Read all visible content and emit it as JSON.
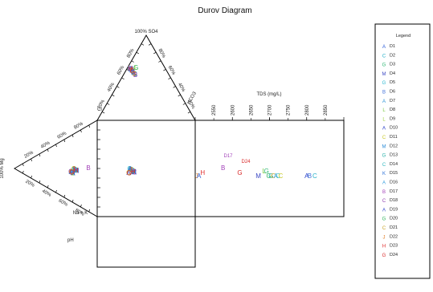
{
  "chart_data": {
    "type": "scatter",
    "title": "Durov Diagram",
    "anion_apex_label": "100% SO4",
    "cation_apex_label": "100% Mg",
    "anion_left_axis_label": "Cl",
    "anion_right_axis_label": "HCO3",
    "cation_bottom_label": "Na + K",
    "ph_label": "pH",
    "tds_label": "TDS (mg/L)",
    "anion_tick_labels": [
      "20%",
      "40%",
      "60%",
      "80%"
    ],
    "anion_right_tick_labels": [
      "20%",
      "40%",
      "60%",
      "80%"
    ],
    "cation_tick_labels": [
      "20%",
      "40%",
      "60%",
      "80%"
    ],
    "cation_bottom_tick_labels": [
      "20%",
      "40%",
      "60%",
      "80%"
    ],
    "tds_ticks": [
      2500,
      2600,
      2700,
      2800,
      2900
    ],
    "tds_tick_labels": [
      "2550",
      "2600",
      "2650",
      "2700",
      "2750",
      "2800",
      "2850"
    ],
    "tds_tick_values": [
      2550,
      2600,
      2650,
      2700,
      2750,
      2800,
      2850
    ],
    "xlim": [
      2500,
      2900
    ],
    "legend": {
      "title": "Legend",
      "position": "right",
      "entries": [
        {
          "name": "D1",
          "symbol": "A",
          "color": "#2a5bd7"
        },
        {
          "name": "D2",
          "symbol": "C",
          "color": "#27b0c9"
        },
        {
          "name": "D3",
          "symbol": "G",
          "color": "#2bb673"
        },
        {
          "name": "D4",
          "symbol": "M",
          "color": "#3b48c4"
        },
        {
          "name": "D5",
          "symbol": "G",
          "color": "#2ab7d1"
        },
        {
          "name": "D6",
          "symbol": "B",
          "color": "#3f6fd9"
        },
        {
          "name": "D7",
          "symbol": "A",
          "color": "#2a93d7"
        },
        {
          "name": "D8",
          "symbol": "L",
          "color": "#7ac943"
        },
        {
          "name": "D9",
          "symbol": "L",
          "color": "#9bcf3c"
        },
        {
          "name": "D10",
          "symbol": "A",
          "color": "#2a40c9"
        },
        {
          "name": "D11",
          "symbol": "C",
          "color": "#c9c927"
        },
        {
          "name": "D12",
          "symbol": "M",
          "color": "#2a8bd7"
        },
        {
          "name": "D13",
          "symbol": "G",
          "color": "#25b0a8"
        },
        {
          "name": "D14",
          "symbol": "C",
          "color": "#2fb8c0"
        },
        {
          "name": "D15",
          "symbol": "K",
          "color": "#2a6fd7"
        },
        {
          "name": "D16",
          "symbol": "A",
          "color": "#3aa0e0"
        },
        {
          "name": "D17",
          "symbol": "B",
          "color": "#a13fb8"
        },
        {
          "name": "D18",
          "symbol": "C",
          "color": "#8f3fb0"
        },
        {
          "name": "D19",
          "symbol": "A",
          "color": "#3a52d0"
        },
        {
          "name": "D20",
          "symbol": "G",
          "color": "#2fb35a"
        },
        {
          "name": "D21",
          "symbol": "C",
          "color": "#c9a227"
        },
        {
          "name": "D22",
          "symbol": "J",
          "color": "#e07a1f"
        },
        {
          "name": "D23",
          "symbol": "H",
          "color": "#e02f2f"
        },
        {
          "name": "D24",
          "symbol": "G",
          "color": "#d92a2a"
        }
      ]
    },
    "annotations": [
      "D17",
      "D24"
    ],
    "tds_points": [
      {
        "name": "D22",
        "tds": 2504,
        "symbol": "J",
        "color": "#e07a1f"
      },
      {
        "name": "D1",
        "tds": 2510,
        "symbol": "A",
        "color": "#2a5bd7"
      },
      {
        "name": "D23",
        "tds": 2520,
        "symbol": "H",
        "color": "#e02f2f"
      },
      {
        "name": "D17",
        "tds": 2575,
        "symbol": "B",
        "color": "#a13fb8"
      },
      {
        "name": "D24",
        "tds": 2620,
        "symbol": "G",
        "color": "#d92a2a"
      },
      {
        "name": "D4",
        "tds": 2670,
        "symbol": "M",
        "color": "#3b48c4"
      },
      {
        "name": "D8",
        "tds": 2685,
        "symbol": "L",
        "color": "#7ac943"
      },
      {
        "name": "D3",
        "tds": 2692,
        "symbol": "G",
        "color": "#2bb673"
      },
      {
        "name": "D20",
        "tds": 2698,
        "symbol": "G",
        "color": "#2fb35a"
      },
      {
        "name": "D13",
        "tds": 2704,
        "symbol": "G",
        "color": "#25b0a8"
      },
      {
        "name": "D21",
        "tds": 2710,
        "symbol": "C",
        "color": "#c9a227"
      },
      {
        "name": "D16",
        "tds": 2717,
        "symbol": "A",
        "color": "#3aa0e0"
      },
      {
        "name": "D14",
        "tds": 2723,
        "symbol": "C",
        "color": "#2fb8c0"
      },
      {
        "name": "D11",
        "tds": 2730,
        "symbol": "C",
        "color": "#c9c927"
      },
      {
        "name": "D10",
        "tds": 2800,
        "symbol": "A",
        "color": "#2a40c9"
      },
      {
        "name": "D6",
        "tds": 2808,
        "symbol": "B",
        "color": "#3f6fd9"
      },
      {
        "name": "D2",
        "tds": 2822,
        "symbol": "C",
        "color": "#27b0c9"
      }
    ]
  }
}
